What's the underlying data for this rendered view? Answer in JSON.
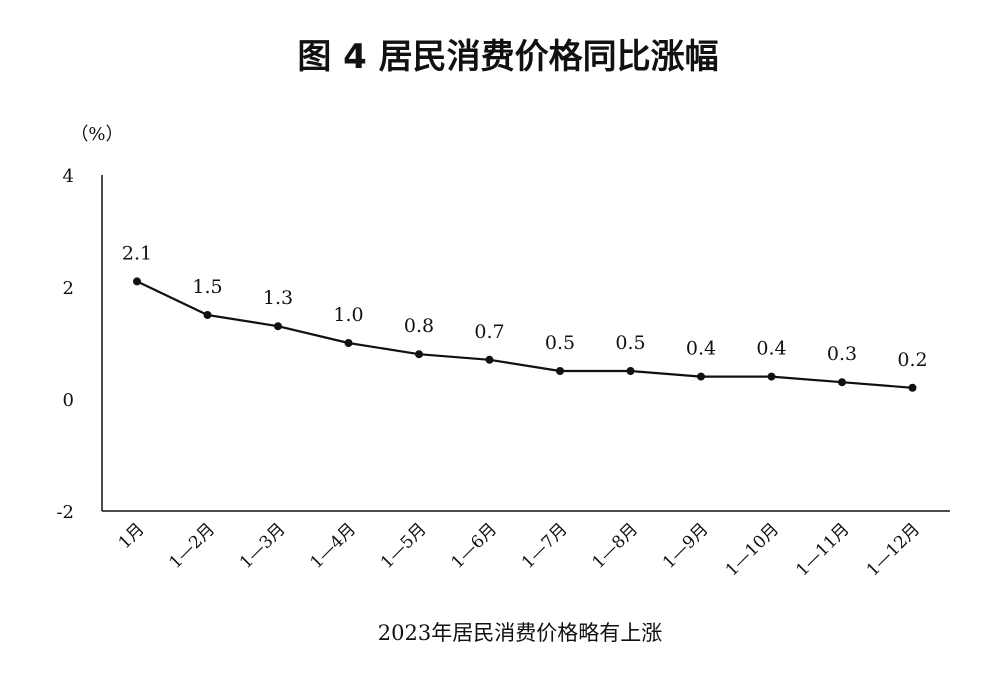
{
  "figure": {
    "title": "图 4 居民消费价格同比涨幅",
    "caption": "2023年居民消费价格略有上涨"
  },
  "chart_data": {
    "type": "line",
    "title": "图 4 居民消费价格同比涨幅",
    "ylabel": "（%）",
    "xlabel": "",
    "categories": [
      "1月",
      "1—2月",
      "1—3月",
      "1—4月",
      "1—5月",
      "1—6月",
      "1—7月",
      "1—8月",
      "1—9月",
      "1—10月",
      "1—11月",
      "1—12月"
    ],
    "values": [
      2.1,
      1.5,
      1.3,
      1.0,
      0.8,
      0.7,
      0.5,
      0.5,
      0.4,
      0.4,
      0.3,
      0.2
    ],
    "data_labels": [
      "2.1",
      "1.5",
      "1.3",
      "1.0",
      "0.8",
      "0.7",
      "0.5",
      "0.5",
      "0.4",
      "0.4",
      "0.3",
      "0.2"
    ],
    "yticks": [
      "4",
      "2",
      "0",
      "-2"
    ],
    "ylim": [
      -2,
      4
    ],
    "grid": false,
    "legend": "none",
    "line_color": "#111111"
  }
}
